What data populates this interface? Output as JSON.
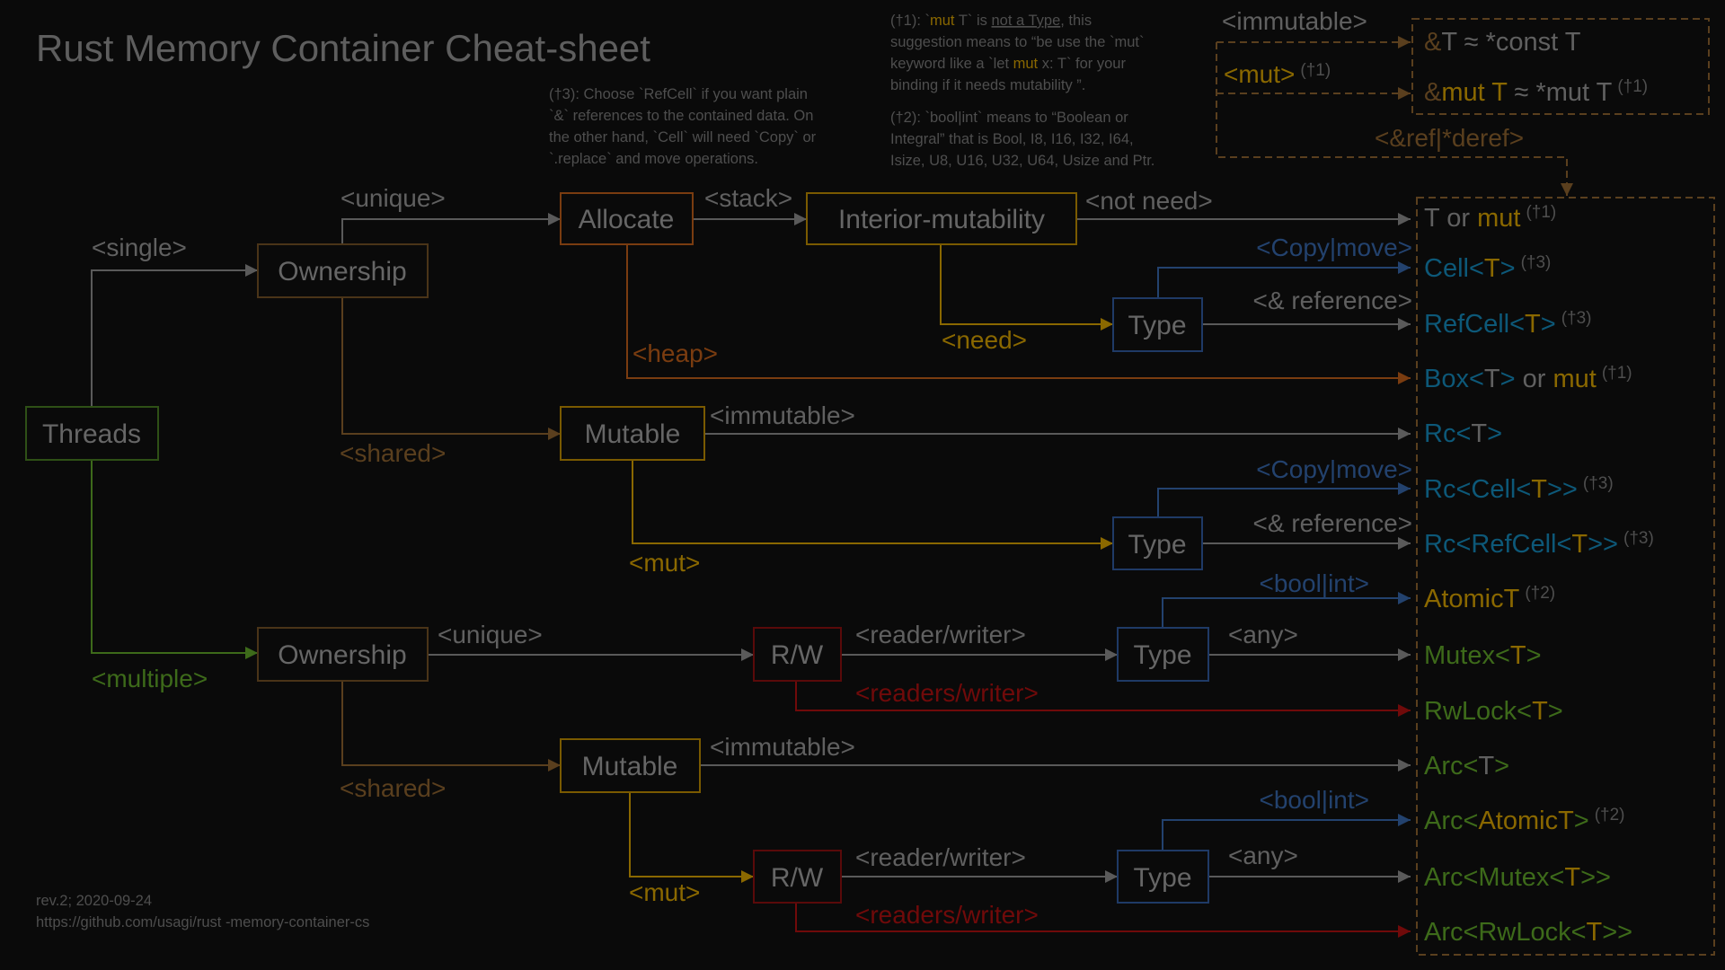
{
  "title": "Rust Memory Container Cheat-sheet",
  "colors": {
    "background": "#0a0a0a",
    "gray": "#606060",
    "brown": "#5a3f1e",
    "orange": "#7a3c10",
    "gold": "#8a6800",
    "blue": "#0d5878",
    "blueline": "#23426e",
    "green": "#3d6a1a",
    "red": "#700a0a"
  },
  "notes": {
    "dagger3": [
      [
        {
          "t": "(†3): Choose `RefCell` if you want plain",
          "c": "note"
        }
      ],
      [
        {
          "t": "`&` references to the contained data. On",
          "c": "note"
        }
      ],
      [
        {
          "t": "the other hand, `Cell` will need `Copy` or",
          "c": "note"
        }
      ],
      [
        {
          "t": "`.replace` and move operations.",
          "c": "note"
        }
      ]
    ],
    "dagger1": [
      [
        {
          "t": "(†1): `",
          "c": "note"
        },
        {
          "t": "mut",
          "c": "gold"
        },
        {
          "t": " T` is ",
          "c": "note"
        },
        {
          "t": "not a Type",
          "c": "note",
          "u": true
        },
        {
          "t": ", this",
          "c": "note"
        }
      ],
      [
        {
          "t": "suggestion means to “be use the `mut`",
          "c": "note"
        }
      ],
      [
        {
          "t": "keyword like a `let  ",
          "c": "note"
        },
        {
          "t": "mut",
          "c": "gold"
        },
        {
          "t": " x: T` for your",
          "c": "note"
        }
      ],
      [
        {
          "t": "binding if it needs mutability ”.",
          "c": "note"
        }
      ]
    ],
    "dagger2": [
      [
        {
          "t": "(†2): `bool|int` means to “Boolean or",
          "c": "note"
        }
      ],
      [
        {
          "t": "Integral” that is Bool, I8, I16, I32, I64,",
          "c": "note"
        }
      ],
      [
        {
          "t": "Isize, U8, U16, U32, U64,  Usize and Ptr.",
          "c": "note"
        }
      ]
    ]
  },
  "reference_legend": {
    "immutable_label": "<immutable>",
    "mut_label": "<mut>",
    "mut_sup": "(†1)",
    "ref_deref_label": "<&ref|*deref>",
    "items": [
      {
        "segments": [
          {
            "t": "&",
            "c": "brown"
          },
          {
            "t": "T ≈ *const T",
            "c": "gray"
          }
        ],
        "sup": ""
      },
      {
        "segments": [
          {
            "t": "&",
            "c": "brown"
          },
          {
            "t": "mut T",
            "c": "gold"
          },
          {
            "t": " ≈ *mut T",
            "c": "gray"
          }
        ],
        "sup": "(†1)"
      }
    ]
  },
  "nodes": {
    "threads": "Threads",
    "ownership_single": "Ownership",
    "allocate": "Allocate",
    "interior_mutability": "Interior-mutability",
    "type_interior": "Type",
    "mutable_rc": "Mutable",
    "type_rc": "Type",
    "ownership_multiple": "Ownership",
    "rw_unique": "R/W",
    "type_unique": "Type",
    "mutable_arc": "Mutable",
    "rw_arc": "R/W",
    "type_arc": "Type"
  },
  "edges": {
    "single": "<single>",
    "multiple": "<multiple>",
    "unique_1": "<unique>",
    "shared_1": "<shared>",
    "stack": "<stack>",
    "heap": "<heap>",
    "not_need": "<not need>",
    "need": "<need>",
    "copy_move_1": "<Copy|move>",
    "ref_1": "<& reference>",
    "immutable_1": "<immutable>",
    "mut_1": "<mut>",
    "copy_move_2": "<Copy|move>",
    "ref_2": "<& reference>",
    "unique_2": "<unique>",
    "shared_2": "<shared>",
    "reader_writer_1": "<reader/writer>",
    "readers_writer_1": "<readers/writer>",
    "bool_int_1": "<bool|int>",
    "any_1": "<any>",
    "immutable_2": "<immutable>",
    "mut_2": "<mut>",
    "reader_writer_2": "<reader/writer>",
    "readers_writer_2": "<readers/writer>",
    "bool_int_2": "<bool|int>",
    "any_2": "<any>"
  },
  "results": [
    {
      "segments": [
        {
          "t": "T",
          "c": "gray"
        },
        {
          "t": " or ",
          "c": "gray"
        },
        {
          "t": "mut",
          "c": "gold"
        }
      ],
      "sup": "(†1)"
    },
    {
      "segments": [
        {
          "t": "Cell",
          "c": "blue"
        },
        {
          "t": "<",
          "c": "blue"
        },
        {
          "t": "T",
          "c": "gold"
        },
        {
          "t": ">",
          "c": "blue"
        }
      ],
      "sup": "(†3)"
    },
    {
      "segments": [
        {
          "t": "RefCell",
          "c": "blue"
        },
        {
          "t": "<",
          "c": "blue"
        },
        {
          "t": "T",
          "c": "gold"
        },
        {
          "t": ">",
          "c": "blue"
        }
      ],
      "sup": "(†3)"
    },
    {
      "segments": [
        {
          "t": "Box",
          "c": "blue"
        },
        {
          "t": "<",
          "c": "blue"
        },
        {
          "t": "T",
          "c": "gray"
        },
        {
          "t": ">",
          "c": "blue"
        },
        {
          "t": " or ",
          "c": "gray"
        },
        {
          "t": "mut",
          "c": "gold"
        }
      ],
      "sup": "(†1)"
    },
    {
      "segments": [
        {
          "t": "Rc",
          "c": "blue"
        },
        {
          "t": "<",
          "c": "blue"
        },
        {
          "t": "T",
          "c": "gray"
        },
        {
          "t": ">",
          "c": "blue"
        }
      ],
      "sup": ""
    },
    {
      "segments": [
        {
          "t": "Rc<Cell<",
          "c": "blue"
        },
        {
          "t": "T",
          "c": "gold"
        },
        {
          "t": ">>",
          "c": "blue"
        }
      ],
      "sup": "(†3)"
    },
    {
      "segments": [
        {
          "t": "Rc<RefCell<",
          "c": "blue"
        },
        {
          "t": "T",
          "c": "gold"
        },
        {
          "t": ">>",
          "c": "blue"
        }
      ],
      "sup": "(†3)"
    },
    {
      "segments": [
        {
          "t": "AtomicT",
          "c": "gold"
        }
      ],
      "sup": "(†2)"
    },
    {
      "segments": [
        {
          "t": "Mutex<",
          "c": "green"
        },
        {
          "t": "T",
          "c": "gold"
        },
        {
          "t": ">",
          "c": "green"
        }
      ],
      "sup": ""
    },
    {
      "segments": [
        {
          "t": "RwLock<",
          "c": "green"
        },
        {
          "t": "T",
          "c": "gold"
        },
        {
          "t": ">",
          "c": "green"
        }
      ],
      "sup": ""
    },
    {
      "segments": [
        {
          "t": "Arc<",
          "c": "green"
        },
        {
          "t": "T",
          "c": "gray"
        },
        {
          "t": ">",
          "c": "green"
        }
      ],
      "sup": ""
    },
    {
      "segments": [
        {
          "t": "Arc<",
          "c": "green"
        },
        {
          "t": "AtomicT",
          "c": "gold"
        },
        {
          "t": ">",
          "c": "green"
        }
      ],
      "sup": "(†2)"
    },
    {
      "segments": [
        {
          "t": "Arc<Mutex<",
          "c": "green"
        },
        {
          "t": "T",
          "c": "gold"
        },
        {
          "t": ">>",
          "c": "green"
        }
      ],
      "sup": ""
    },
    {
      "segments": [
        {
          "t": "Arc<RwLock<",
          "c": "green"
        },
        {
          "t": "T",
          "c": "gold"
        },
        {
          "t": ">>",
          "c": "green"
        }
      ],
      "sup": ""
    }
  ],
  "footer": {
    "revision": "rev.2; 2020-09-24",
    "url": "https://github.com/usagi/rust -memory-container-cs"
  }
}
